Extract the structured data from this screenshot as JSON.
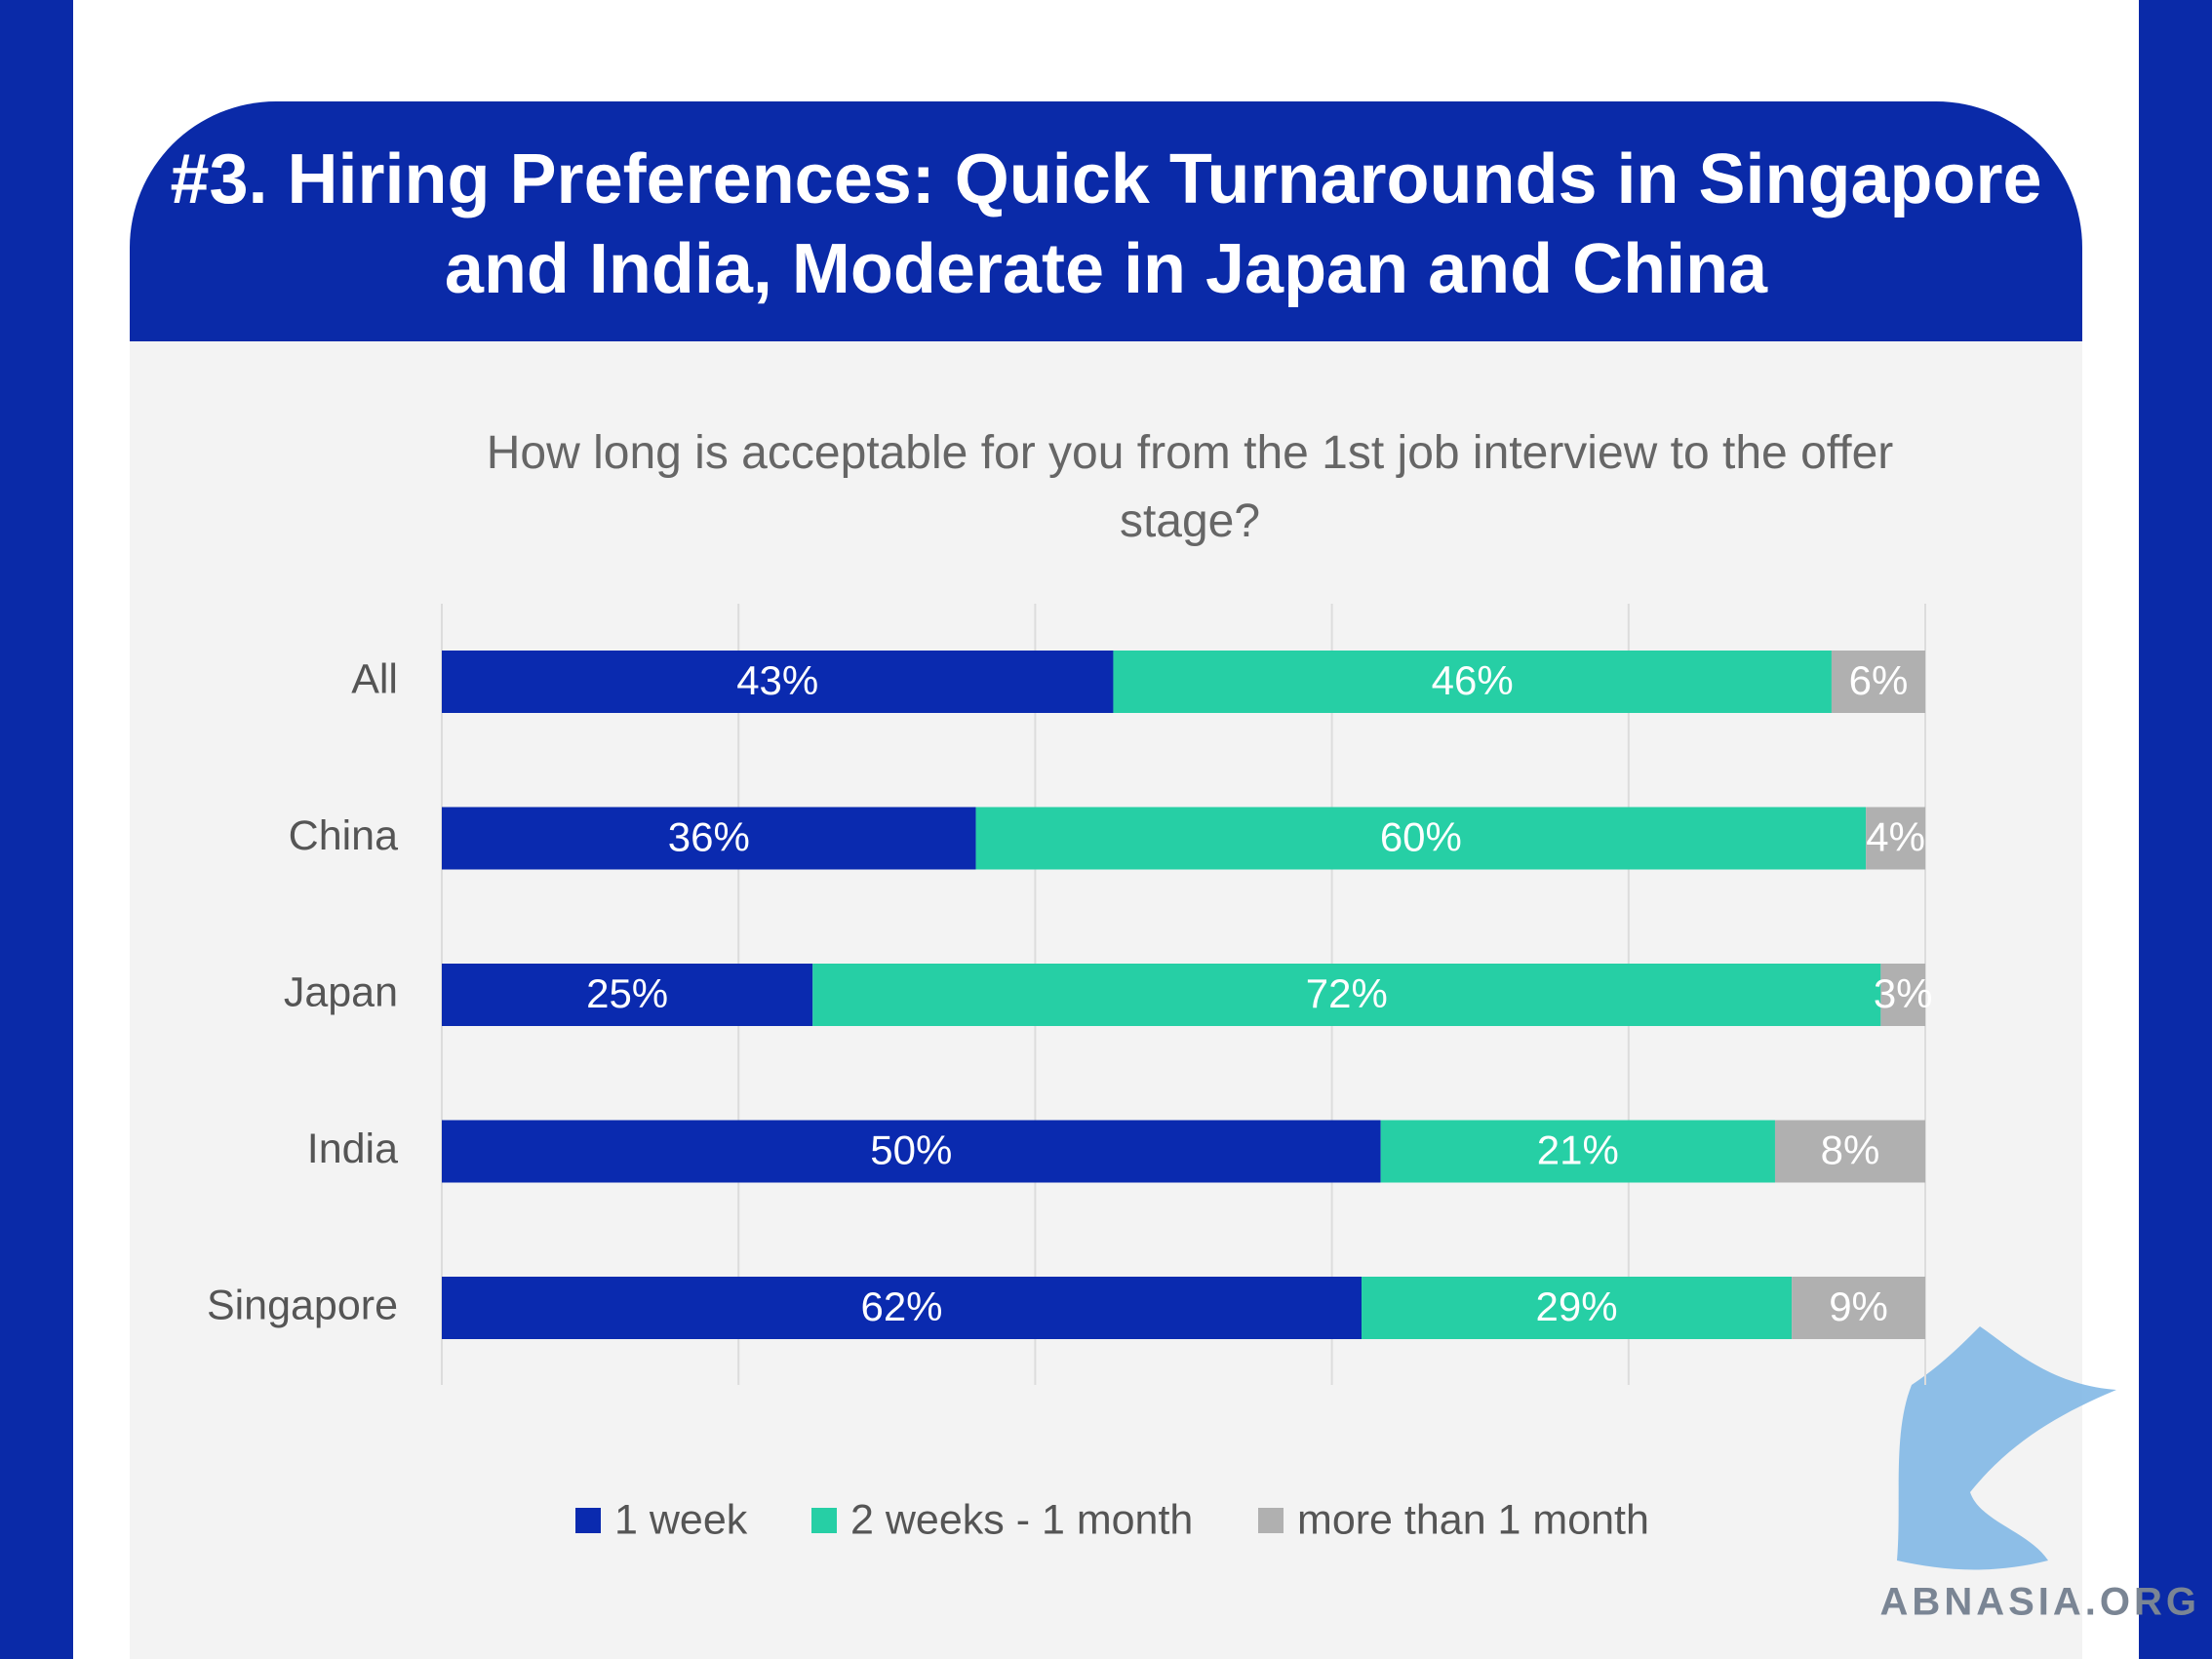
{
  "chart_data": {
    "type": "bar",
    "orientation": "horizontal",
    "stacking": "percent",
    "title": "#3. Hiring Preferences: Quick Turnarounds in Singapore and India, Moderate in Japan and China",
    "subtitle": "How long is acceptable for you from the 1st job interview to the offer stage?",
    "categories": [
      "All",
      "China",
      "Japan",
      "India",
      "Singapore"
    ],
    "series": [
      {
        "name": "1 week",
        "color": "#0a2aaf",
        "values": [
          43,
          36,
          25,
          50,
          62
        ],
        "value_labels": [
          "43%",
          "36%",
          "25%",
          "50%",
          "62%"
        ]
      },
      {
        "name": "2 weeks - 1 month",
        "color": "#26cfa5",
        "values": [
          46,
          60,
          72,
          21,
          29
        ],
        "value_labels": [
          "46%",
          "60%",
          "72%",
          "21%",
          "29%"
        ]
      },
      {
        "name": "more than 1 month",
        "color": "#b0b0b0",
        "values": [
          6,
          4,
          3,
          8,
          9
        ],
        "value_labels": [
          "6%",
          "4%",
          "3%",
          "8%",
          "9%"
        ]
      }
    ],
    "xlim": [
      0,
      100
    ],
    "xticks": [
      0,
      20,
      40,
      60,
      80,
      100
    ],
    "grid": true,
    "legend": "bottom"
  },
  "watermark": "ABNASIA.ORG"
}
